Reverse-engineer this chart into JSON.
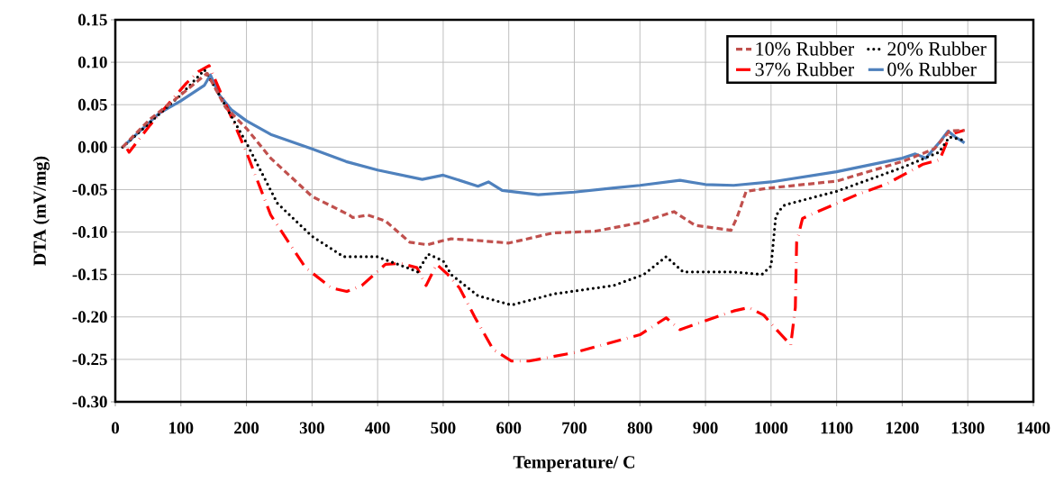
{
  "chart_data": {
    "type": "line",
    "xlabel": "Temperature/ C",
    "ylabel": "DTA  (mV/mg)",
    "xlim": [
      0,
      1400
    ],
    "xticks": [
      0,
      100,
      200,
      300,
      400,
      500,
      600,
      700,
      800,
      900,
      1000,
      1100,
      1200,
      1300,
      1400
    ],
    "ylim": [
      -0.3,
      0.15
    ],
    "yticks": [
      {
        "value": 0.15,
        "label": "0.15"
      },
      {
        "value": 0.1,
        "label": "0.10"
      },
      {
        "value": 0.05,
        "label": "0.05"
      },
      {
        "value": 0,
        "label": "0.00"
      },
      {
        "value": -0.05,
        "label": "-0.05"
      },
      {
        "value": -0.1,
        "label": "-0.10"
      },
      {
        "value": -0.15,
        "label": "-0.15"
      },
      {
        "value": -0.2,
        "label": "-0.20"
      },
      {
        "value": -0.25,
        "label": "-0.25"
      },
      {
        "value": -0.3,
        "label": "-0.30"
      }
    ],
    "grid": true,
    "legend": "top right",
    "marker": "none",
    "series": [
      {
        "name": "10% Rubber",
        "color": "#c0504d",
        "line_style": "dashed",
        "x": [
          11,
          53,
          99,
          140,
          168,
          200,
          237,
          300,
          357,
          362,
          385,
          412,
          449,
          476,
          500,
          512,
          553,
          600,
          668,
          732,
          800,
          852,
          884,
          939,
          948,
          962,
          1000,
          1100,
          1200,
          1249,
          1272,
          1295
        ],
        "values": [
          0,
          0.033,
          0.061,
          0.087,
          0.047,
          0.022,
          -0.013,
          -0.058,
          -0.08,
          -0.083,
          -0.08,
          -0.087,
          -0.112,
          -0.115,
          -0.11,
          -0.108,
          -0.11,
          -0.113,
          -0.101,
          -0.099,
          -0.089,
          -0.076,
          -0.092,
          -0.098,
          -0.083,
          -0.052,
          -0.048,
          -0.04,
          -0.017,
          -0.002,
          0.019,
          0.02
        ]
      },
      {
        "name": "20% Rubber",
        "color": "#000000",
        "line_style": "dotted",
        "x": [
          11,
          99,
          136,
          159,
          200,
          247,
          300,
          348,
          399,
          445,
          461,
          477,
          500,
          512,
          553,
          604,
          668,
          760,
          806,
          840,
          866,
          943,
          986,
          1000,
          1007,
          1011,
          1021,
          1100,
          1200,
          1256,
          1272,
          1295
        ],
        "values": [
          0,
          0.061,
          0.091,
          0.061,
          0.005,
          -0.066,
          -0.105,
          -0.129,
          -0.129,
          -0.142,
          -0.147,
          -0.126,
          -0.134,
          -0.15,
          -0.175,
          -0.186,
          -0.173,
          -0.163,
          -0.15,
          -0.129,
          -0.147,
          -0.147,
          -0.15,
          -0.14,
          -0.083,
          -0.076,
          -0.068,
          -0.052,
          -0.024,
          -0.006,
          0.012,
          0.008
        ]
      },
      {
        "name": "37% Rubber",
        "color": "#ff0000",
        "line_style": "dashdot",
        "x": [
          18,
          21,
          53,
          108,
          127,
          143,
          200,
          237,
          290,
          330,
          353,
          376,
          412,
          435,
          460,
          474,
          490,
          507,
          525,
          548,
          576,
          604,
          631,
          700,
          800,
          840,
          861,
          943,
          966,
          989,
          1007,
          1030,
          1037,
          1039,
          1048,
          1062,
          1131,
          1177,
          1232,
          1257,
          1273,
          1295
        ],
        "values": [
          -0.002,
          -0.006,
          0.026,
          0.075,
          0.089,
          0.096,
          -0.006,
          -0.08,
          -0.142,
          -0.166,
          -0.17,
          -0.163,
          -0.138,
          -0.137,
          -0.142,
          -0.163,
          -0.138,
          -0.15,
          -0.166,
          -0.2,
          -0.238,
          -0.252,
          -0.252,
          -0.242,
          -0.221,
          -0.201,
          -0.215,
          -0.193,
          -0.189,
          -0.198,
          -0.214,
          -0.233,
          -0.189,
          -0.112,
          -0.084,
          -0.079,
          -0.056,
          -0.043,
          -0.02,
          -0.015,
          0.015,
          0.02
        ]
      },
      {
        "name": "0% Rubber",
        "color": "#4f81bd",
        "line_style": "solid",
        "x": [
          11,
          67,
          99,
          136,
          145,
          159,
          177,
          200,
          237,
          300,
          352,
          400,
          468,
          500,
          553,
          569,
          590,
          645,
          700,
          760,
          800,
          861,
          900,
          943,
          1000,
          1100,
          1200,
          1220,
          1236,
          1256,
          1270,
          1281,
          1295
        ],
        "values": [
          0,
          0.04,
          0.054,
          0.073,
          0.085,
          0.061,
          0.044,
          0.031,
          0.015,
          -0.002,
          -0.017,
          -0.027,
          -0.038,
          -0.033,
          -0.046,
          -0.041,
          -0.051,
          -0.056,
          -0.053,
          -0.048,
          -0.045,
          -0.039,
          -0.044,
          -0.045,
          -0.041,
          -0.029,
          -0.013,
          -0.008,
          -0.013,
          0.005,
          0.019,
          0.012,
          0.005
        ]
      }
    ]
  }
}
